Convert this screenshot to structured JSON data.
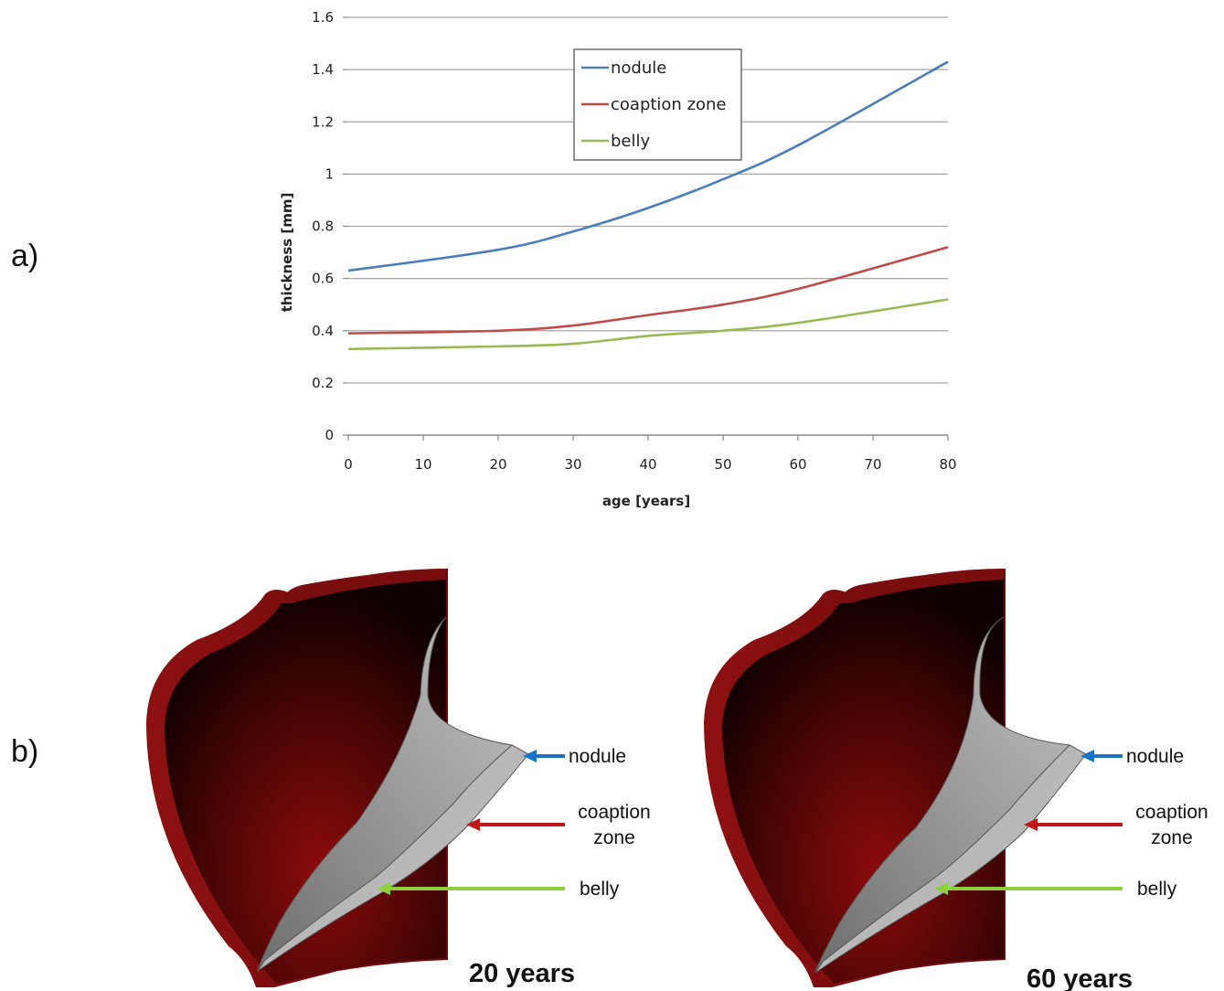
{
  "figure": {
    "panel_a_label": "a)",
    "panel_b_label": "b)"
  },
  "chart_data": {
    "type": "line",
    "xlabel": "age [years]",
    "ylabel": "thickness [mm]",
    "xlim": [
      0,
      80
    ],
    "ylim": [
      0,
      1.6
    ],
    "x_ticks": [
      0,
      10,
      20,
      30,
      40,
      50,
      60,
      70,
      80
    ],
    "y_ticks": [
      0,
      0.2,
      0.4,
      0.6,
      0.8,
      1,
      1.2,
      1.4,
      1.6
    ],
    "y_tick_labels": [
      "0",
      "0.2",
      "0.4",
      "0.6",
      "0.8",
      "1",
      "1.2",
      "1.4",
      "1.6"
    ],
    "grid": "horizontal",
    "legend_position": "top-center",
    "x": [
      0,
      20,
      30,
      40,
      50,
      60,
      80
    ],
    "series": [
      {
        "name": "nodule",
        "color": "#4a7ebb",
        "values": [
          0.63,
          0.71,
          0.78,
          0.87,
          0.98,
          1.11,
          1.43
        ]
      },
      {
        "name": "coaption zone",
        "color": "#be4b48",
        "values": [
          0.39,
          0.4,
          0.42,
          0.46,
          0.5,
          0.56,
          0.72
        ]
      },
      {
        "name": "belly",
        "color": "#98b954",
        "values": [
          0.33,
          0.34,
          0.35,
          0.38,
          0.4,
          0.43,
          0.52
        ]
      }
    ]
  },
  "panel_b": {
    "models": [
      {
        "age_label": "20 years",
        "callouts": {
          "nodule": "nodule",
          "coaption_line1": "coaption",
          "coaption_line2": "zone",
          "belly": "belly"
        }
      },
      {
        "age_label": "60 years",
        "callouts": {
          "nodule": "nodule",
          "coaption_line1": "coaption",
          "coaption_line2": "zone",
          "belly": "belly"
        }
      }
    ],
    "colors": {
      "wall": "#7a0d0d",
      "leaflet": "#8f8f8f",
      "nodule_arrow": "#1a73c6",
      "coaption_arrow": "#c01818",
      "belly_arrow": "#8fce3d"
    }
  }
}
